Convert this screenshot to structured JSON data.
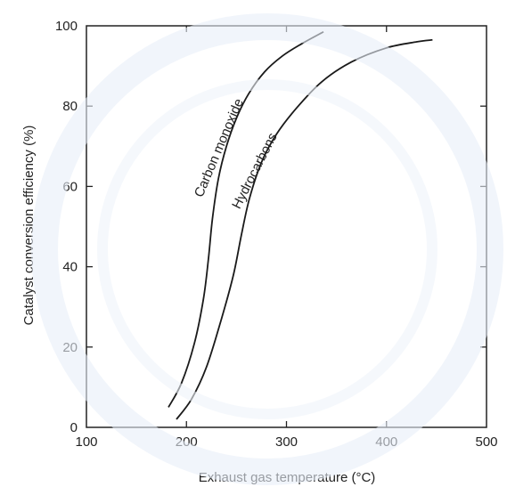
{
  "chart_data": {
    "type": "line",
    "title": "",
    "xlabel": "Exhaust gas temperature (°C)",
    "ylabel": "Catalyst conversion efficiency (%)",
    "xlim": [
      100,
      500
    ],
    "ylim": [
      0,
      100
    ],
    "xticks": [
      100,
      200,
      300,
      400,
      500
    ],
    "yticks": [
      0,
      20,
      40,
      60,
      80,
      100
    ],
    "grid": false,
    "legend": "none",
    "series": [
      {
        "name": "Carbon monoxide",
        "color": "#1a1a1a",
        "x": [
          182,
          195,
          208,
          217,
          222,
          226,
          232,
          240,
          250,
          262,
          278,
          296,
          315,
          337
        ],
        "y": [
          5,
          11,
          21,
          32,
          42,
          52,
          62,
          70,
          77,
          83,
          88.5,
          92.5,
          95.5,
          98.5
        ]
      },
      {
        "name": "Hydrocarbons",
        "color": "#1a1a1a",
        "x": [
          190,
          205,
          220,
          235,
          247,
          255,
          263,
          275,
          290,
          310,
          335,
          365,
          400,
          430,
          446
        ],
        "y": [
          2,
          7,
          15,
          27,
          38,
          48,
          57,
          66,
          73,
          79.5,
          86,
          91,
          94.5,
          96,
          96.5
        ]
      }
    ]
  }
}
